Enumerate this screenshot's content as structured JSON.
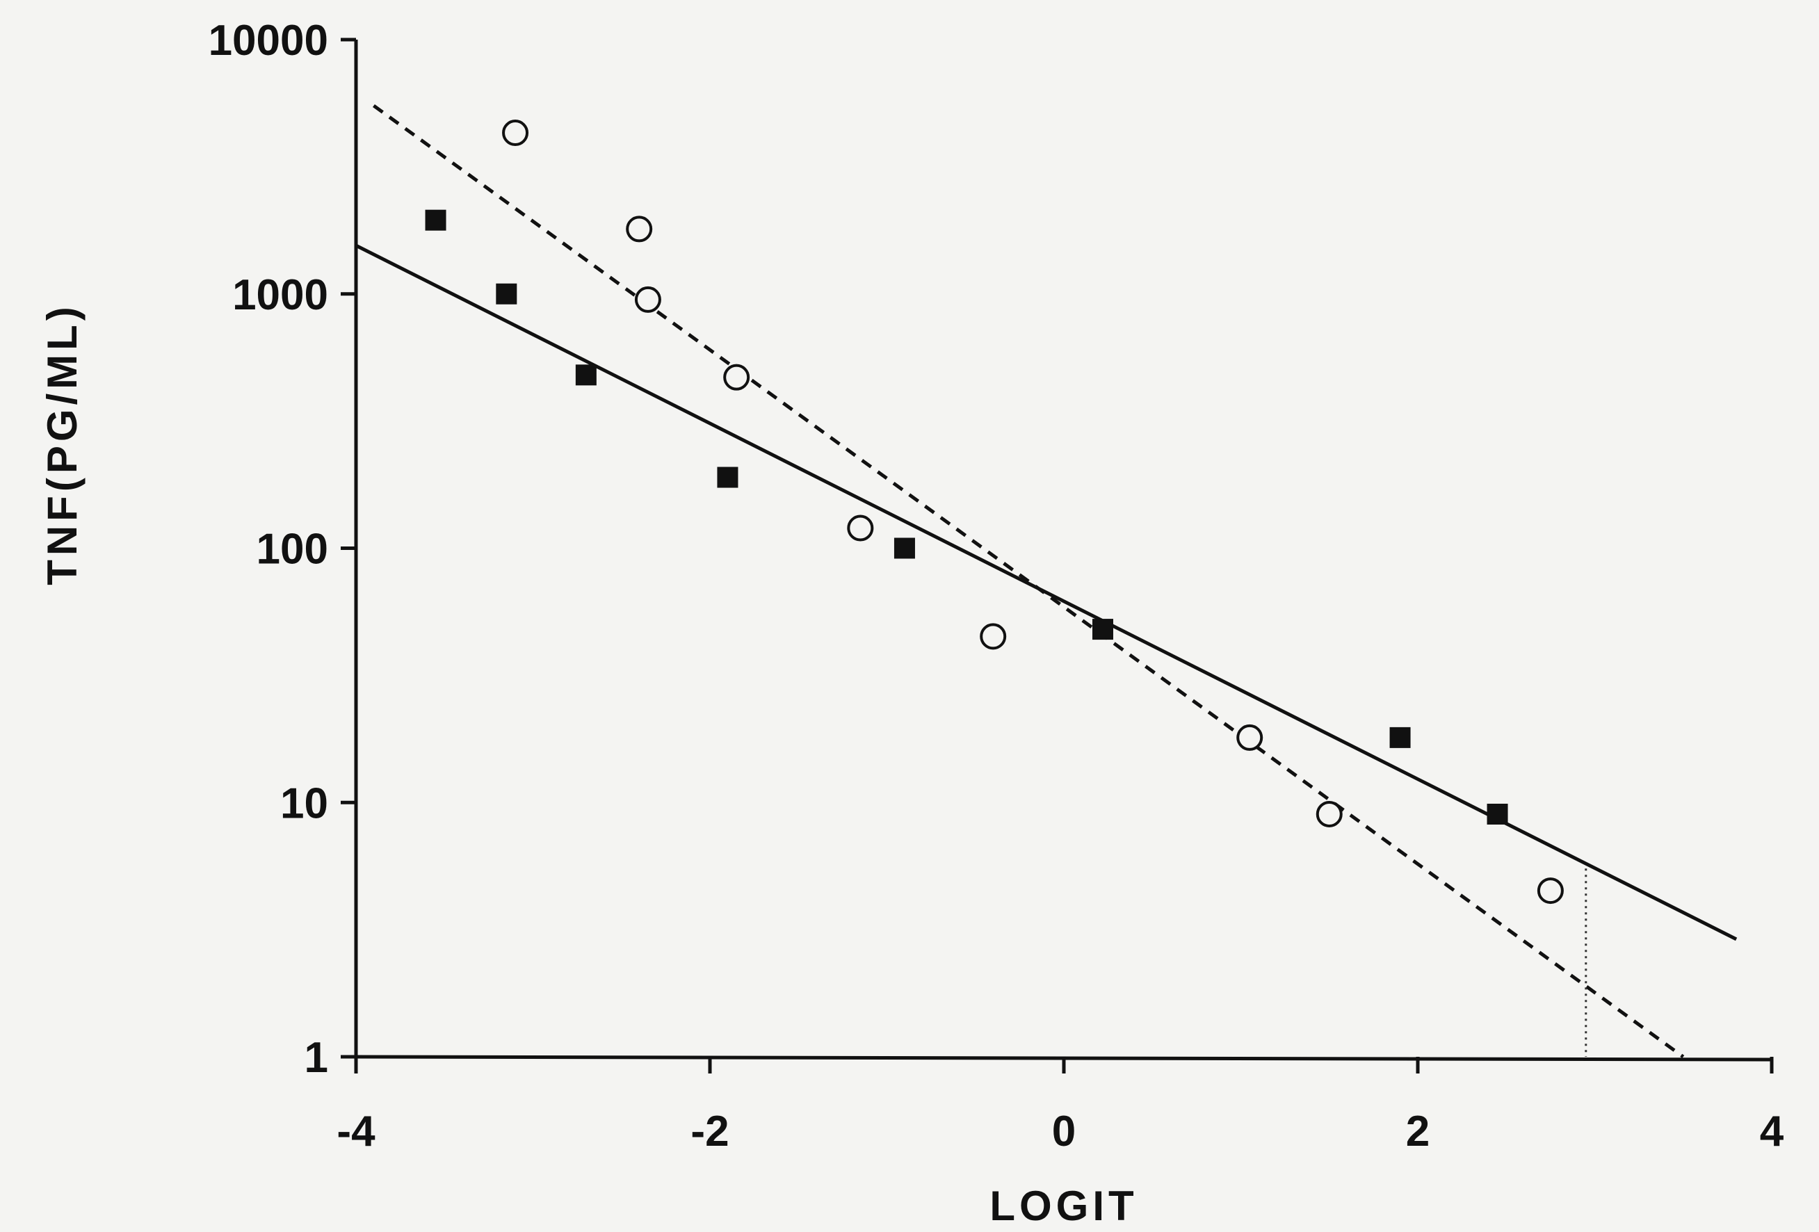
{
  "chart_data": {
    "type": "scatter",
    "title": "",
    "xlabel": "LOGIT",
    "ylabel": "TNF(PG/ML)",
    "xlim": [
      -4,
      4
    ],
    "ylim": [
      1,
      10000
    ],
    "y_scale": "log",
    "grid": false,
    "x_ticks": [
      -4,
      -2,
      0,
      2,
      4
    ],
    "x_tick_labels": [
      "-4",
      "-2",
      "0",
      "2",
      "4"
    ],
    "y_ticks": [
      1,
      10,
      100,
      1000,
      10000
    ],
    "y_tick_labels": [
      "1",
      "10",
      "100",
      "1000",
      "10000"
    ],
    "series": [
      {
        "marker": "filled-square",
        "color": "#111111",
        "x": [
          -3.55,
          -3.15,
          -2.7,
          -1.9,
          -0.9,
          0.22,
          1.9,
          2.45
        ],
        "y": [
          1950,
          1000,
          480,
          190,
          100,
          48,
          18,
          9
        ]
      },
      {
        "marker": "open-circle",
        "color": "#111111",
        "x": [
          -3.1,
          -2.4,
          -2.35,
          -1.85,
          -1.15,
          -0.4,
          1.05,
          1.5,
          2.75
        ],
        "y": [
          4300,
          1800,
          950,
          470,
          120,
          45,
          18,
          9,
          4.5
        ]
      }
    ],
    "fit_lines": [
      {
        "style": "solid",
        "color": "#111111",
        "x": [
          -4,
          3.8
        ],
        "y": [
          1550,
          2.9
        ]
      },
      {
        "style": "dashed",
        "color": "#111111",
        "x": [
          -3.9,
          3.5
        ],
        "y": [
          5500,
          1.0
        ]
      }
    ],
    "reference_line": {
      "style": "dotted",
      "color": "#333333",
      "x": 2.95,
      "y_from": 1,
      "y_to": 5.5
    }
  }
}
